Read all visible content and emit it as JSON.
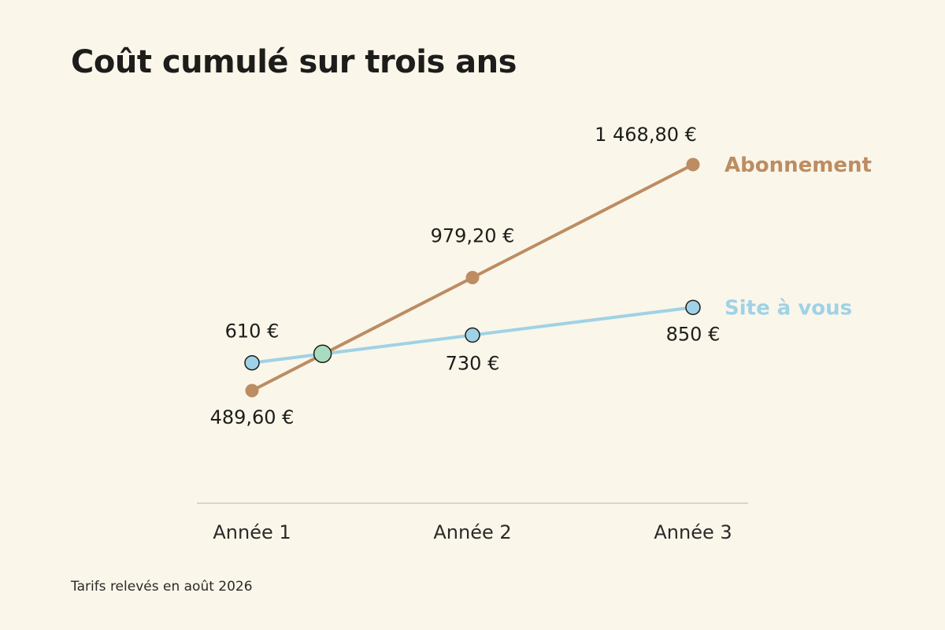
{
  "title": "Coût cumulé sur trois ans",
  "footnote": "Tarifs relevés en août 2026",
  "colors": {
    "background": "#faf6ea",
    "abonnement": "#bd8c62",
    "site": "#9fd2e6",
    "crossing": "#a8dcc0",
    "axis": "#d9d5cb"
  },
  "chart_data": {
    "type": "line",
    "x": [
      "Année 1",
      "Année 2",
      "Année 3"
    ],
    "series": [
      {
        "name": "Abonnement",
        "values": [
          489.6,
          979.2,
          1468.8
        ],
        "labels": [
          "489,60 €",
          "979,20 €",
          "1 468,80 €"
        ],
        "color": "#bd8c62"
      },
      {
        "name": "Site à vous",
        "values": [
          610,
          730,
          850
        ],
        "labels": [
          "610 €",
          "730 €",
          "850 €"
        ],
        "color": "#9fd2e6"
      }
    ],
    "intersection": {
      "x": 1.32,
      "value": 649
    },
    "ylim": [
      0,
      1600
    ],
    "grid": false,
    "legend": "direct-labels-right"
  }
}
